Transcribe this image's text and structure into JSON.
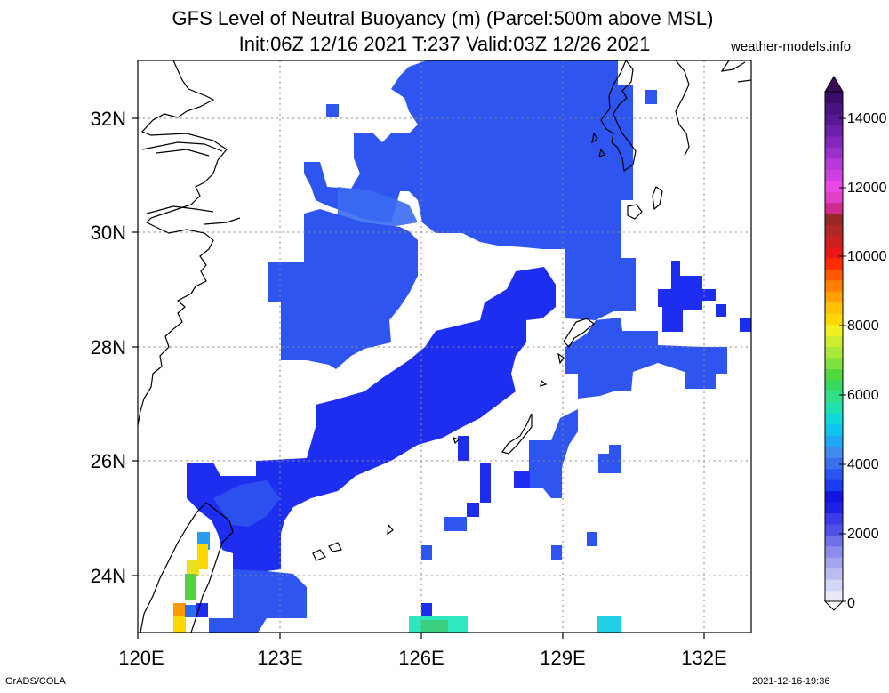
{
  "header": {
    "title_line1": "GFS Level of Neutral Buoyancy (m) (Parcel:500m above MSL)",
    "title_line2": "Init:06Z 12/16 2021 T:237 Valid:03Z 12/26 2021",
    "brand": "weather-models.info"
  },
  "footer": {
    "left": "GrADS/COLA",
    "right": "2021-12-16-19:36"
  },
  "map": {
    "lon_labels": [
      "120E",
      "123E",
      "126E",
      "129E",
      "132E"
    ],
    "lat_labels": [
      "32N",
      "30N",
      "28N",
      "26N",
      "24N"
    ],
    "lon_range": [
      120,
      133
    ],
    "lat_range": [
      23,
      33
    ],
    "grid": "dotted",
    "colors": {
      "deep_blue": "#1e2ef0",
      "mid_blue": "#2f55f0",
      "light_blue": "#3a6cf0",
      "coast": "#000000"
    }
  },
  "colorbar": {
    "labels": [
      "14000",
      "12000",
      "10000",
      "8000",
      "6000",
      "4000",
      "2000",
      "0"
    ]
  }
}
